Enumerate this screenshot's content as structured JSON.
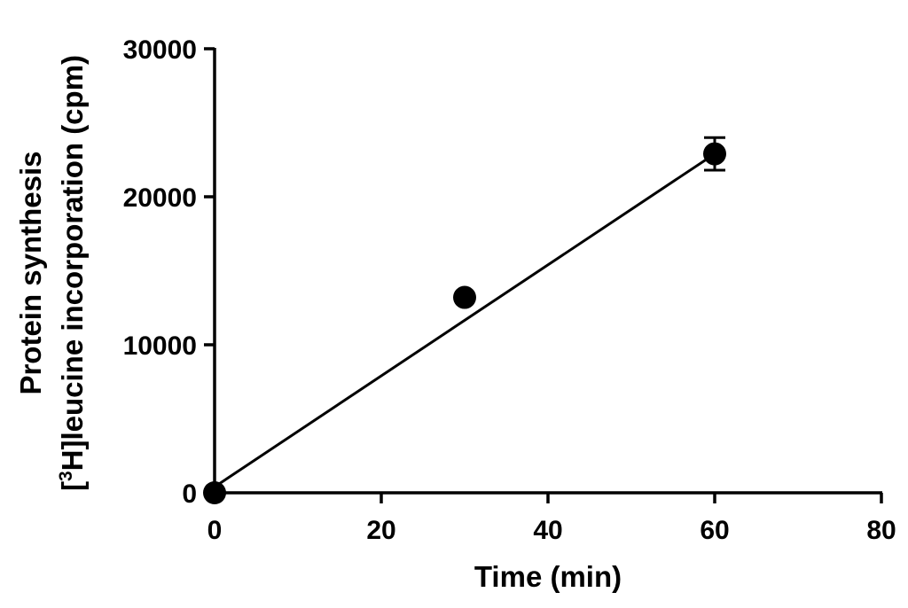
{
  "chart_data": {
    "type": "scatter",
    "xlabel": "Time (min)",
    "ylabel_line1": "Protein synthesis",
    "ylabel_line2_prefix": "[",
    "ylabel_line2_superscript": "3",
    "ylabel_line2_suffix": "H]leucine incorporation (cpm)",
    "xlim": [
      0,
      80
    ],
    "ylim": [
      0,
      30000
    ],
    "x_ticks": [
      0,
      20,
      40,
      60,
      80
    ],
    "x_tick_labels": [
      "0",
      "20",
      "40",
      "60",
      "80"
    ],
    "y_ticks": [
      0,
      10000,
      20000,
      30000
    ],
    "y_tick_labels": [
      "0",
      "10000",
      "20000",
      "30000"
    ],
    "grid": false,
    "series": [
      {
        "x": [
          0,
          30,
          60
        ],
        "y": [
          0,
          13200,
          22900
        ],
        "error": [
          0,
          0,
          1100
        ]
      }
    ],
    "fit_line": {
      "x": [
        0,
        60
      ],
      "y": [
        400,
        22900
      ]
    },
    "colors": {
      "marker": "#000000",
      "line": "#000000"
    }
  }
}
